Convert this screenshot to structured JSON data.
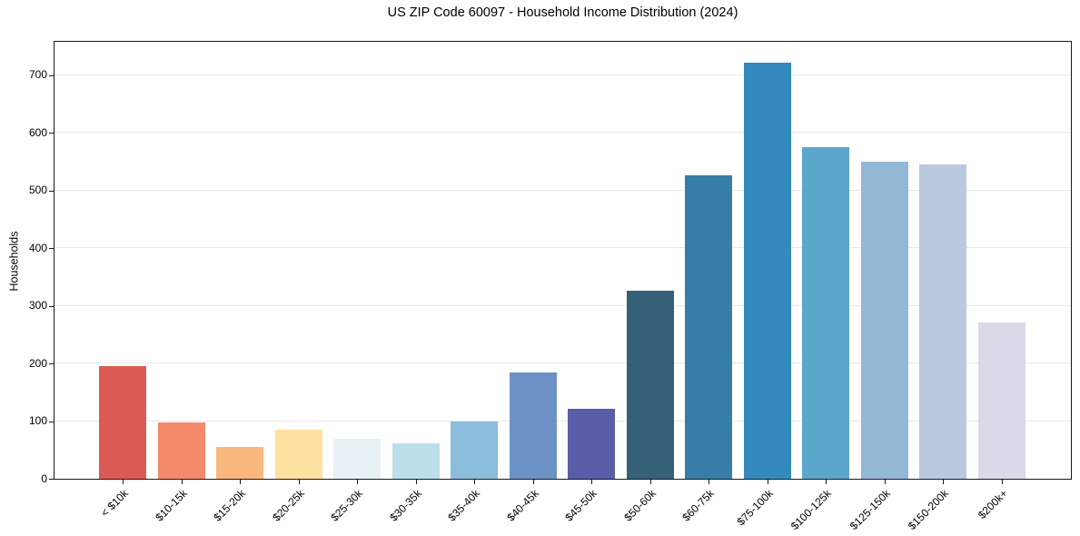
{
  "chart_data": {
    "type": "bar",
    "title": "US ZIP Code 60097 - Household Income Distribution (2024)",
    "xlabel": "",
    "ylabel": "Households",
    "ylim": [
      0,
      758
    ],
    "yticks": [
      0,
      100,
      200,
      300,
      400,
      500,
      600,
      700
    ],
    "grid": "horizontal",
    "grid_color": "#e8e8e8",
    "axis_color": "#1a1a1a",
    "background_color": "#ffffff",
    "legend": "none",
    "categories": [
      "< $10k",
      "$10-15k",
      "$15-20k",
      "$20-25k",
      "$25-30k",
      "$30-35k",
      "$35-40k",
      "$40-45k",
      "$45-50k",
      "$50-60k",
      "$60-75k",
      "$75-100k",
      "$100-125k",
      "$125-150k",
      "$150-200k",
      "$200k+"
    ],
    "values": [
      196,
      97,
      55,
      85,
      70,
      61,
      99,
      185,
      122,
      326,
      527,
      722,
      575,
      550,
      545,
      271
    ],
    "bar_colors": [
      "#d95b53",
      "#f4896b",
      "#fbb87e",
      "#fde1a0",
      "#e7f1f6",
      "#bcdfea",
      "#8bbcdb",
      "#6c92c5",
      "#5a5ea8",
      "#366078",
      "#367ea7",
      "#348abd",
      "#5ba7cb",
      "#93b8d6",
      "#bac9de",
      "#d8dae8"
    ]
  }
}
